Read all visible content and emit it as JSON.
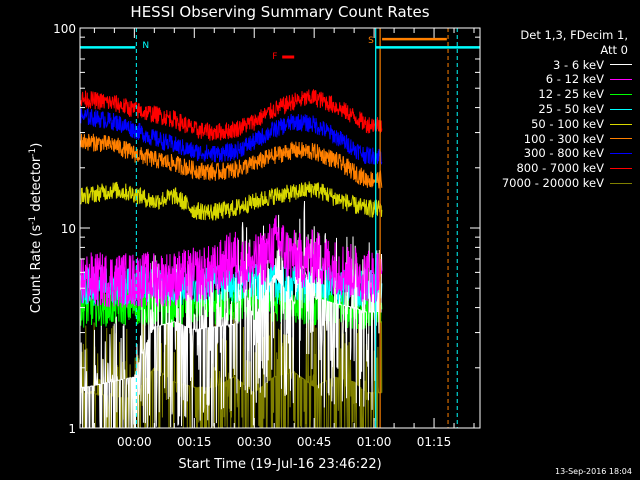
{
  "chart_data": {
    "type": "line",
    "title": "HESSI Observing Summary Count Rates",
    "xlabel": "Start Time (19-Jul-16 23:46:22)",
    "ylabel": "Count Rate (s⁻¹ detector⁻¹)",
    "y_scale": "log",
    "ylim": [
      1,
      100
    ],
    "y_tick_labels": [
      "1",
      "10",
      "100"
    ],
    "x_tick_labels": [
      "00:00",
      "00:15",
      "00:30",
      "00:45",
      "01:00",
      "01:15"
    ],
    "x_range_minutes": [
      -13.6,
      86.5
    ],
    "grid": false,
    "legend_position": "right",
    "legend_header": [
      "Det 1,3, FDecim 1,",
      "Att 0"
    ],
    "series": [
      {
        "name": "3 - 6 keV",
        "color": "#ffffff",
        "x": [
          -12,
          0,
          5,
          10,
          15,
          20,
          25,
          27,
          30,
          35,
          40,
          42,
          45,
          50,
          55,
          58
        ],
        "y": [
          1.6,
          1.8,
          3.2,
          3.4,
          3.1,
          3.2,
          3.3,
          5.5,
          3.4,
          5.8,
          4.2,
          6.5,
          4.5,
          4.2,
          4.0,
          3.8
        ]
      },
      {
        "name": "6 - 12 keV",
        "color": "#ff00ff",
        "x": [
          -12,
          0,
          10,
          20,
          25,
          28,
          32,
          36,
          38,
          42,
          45,
          50,
          55,
          58
        ],
        "y": [
          5.5,
          5.5,
          5.6,
          6.0,
          7.2,
          6.4,
          7.0,
          8.8,
          7.5,
          6.8,
          7.2,
          6.4,
          6.0,
          5.8
        ]
      },
      {
        "name": "12 - 25 keV",
        "color": "#00ff00",
        "x": [
          -12,
          0,
          10,
          20,
          30,
          40,
          50,
          58
        ],
        "y": [
          4.0,
          4.1,
          4.0,
          4.1,
          4.3,
          4.2,
          4.0,
          3.9
        ]
      },
      {
        "name": "25 - 50 keV",
        "color": "#00ffff",
        "x": [
          -12,
          0,
          10,
          20,
          30,
          40,
          50,
          58
        ],
        "y": [
          5.1,
          5.2,
          5.1,
          5.2,
          5.3,
          5.2,
          5.1,
          5.0
        ]
      },
      {
        "name": "50 - 100 keV",
        "color": "#d8d800",
        "x": [
          -12,
          -5,
          0,
          5,
          10,
          15,
          20,
          25,
          30,
          35,
          40,
          45,
          50,
          55,
          58
        ],
        "y": [
          14.5,
          15.5,
          14.8,
          13.5,
          14.5,
          12.2,
          12.0,
          12.5,
          13.5,
          14.5,
          15.0,
          15.8,
          14.2,
          13.0,
          12.5
        ]
      },
      {
        "name": "100 - 300 keV",
        "color": "#ff8000",
        "x": [
          -12,
          -5,
          0,
          5,
          10,
          15,
          20,
          25,
          30,
          35,
          40,
          45,
          50,
          55,
          58
        ],
        "y": [
          27,
          26,
          23.5,
          22,
          21,
          19.5,
          19,
          19.5,
          21,
          23,
          24.5,
          24,
          22,
          19,
          17.5
        ]
      },
      {
        "name": "300 - 800 keV",
        "color": "#0000ff",
        "x": [
          -12,
          -5,
          0,
          5,
          10,
          15,
          20,
          25,
          30,
          35,
          40,
          45,
          50,
          55,
          58
        ],
        "y": [
          36,
          34,
          31,
          28,
          26,
          24,
          23.5,
          24,
          27,
          31,
          34,
          33,
          29,
          25,
          23
        ]
      },
      {
        "name": "800 - 7000 keV",
        "color": "#ff0000",
        "x": [
          -12,
          -5,
          0,
          5,
          10,
          15,
          20,
          25,
          30,
          35,
          40,
          45,
          50,
          55,
          58
        ],
        "y": [
          44,
          42,
          39,
          37,
          35,
          31,
          30,
          31,
          34,
          39,
          43,
          45,
          41,
          36,
          33
        ]
      },
      {
        "name": "7000 - 20000 keV",
        "color": "#808000",
        "x": [
          -12,
          0,
          5,
          10,
          15,
          20,
          25,
          30,
          35,
          40,
          45,
          50,
          55,
          58
        ],
        "y": [
          1.5,
          1.4,
          2.0,
          1.7,
          1.6,
          1.6,
          1.8,
          1.5,
          1.8,
          1.9,
          1.6,
          1.8,
          1.7,
          1.5
        ]
      }
    ],
    "annotations": [
      {
        "label": "N",
        "color": "#00ffff",
        "x": 0.5
      },
      {
        "label": "F",
        "color": "#ff0000",
        "x": 37.5
      },
      {
        "label": "S",
        "color": "#ff8000",
        "x": 61.5
      }
    ],
    "timestamp": "13-Sep-2016 18:04"
  }
}
